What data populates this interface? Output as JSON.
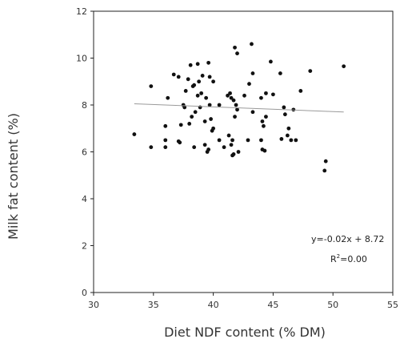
{
  "chart_data": {
    "type": "scatter",
    "title": "",
    "xlabel": "Diet NDF content (% DM)",
    "ylabel": "Milk fat content (%)",
    "xlim": [
      30,
      55
    ],
    "ylim": [
      0,
      12
    ],
    "xticks": [
      "30",
      "35",
      "40",
      "45",
      "50",
      "55"
    ],
    "yticks": [
      "0",
      "2",
      "4",
      "6",
      "8",
      "10",
      "12"
    ],
    "grid": false,
    "series": [
      {
        "points": [
          [
            33.4,
            6.75
          ],
          [
            34.8,
            6.2
          ],
          [
            34.8,
            8.8
          ],
          [
            36.0,
            7.1
          ],
          [
            36.0,
            6.5
          ],
          [
            36.0,
            6.2
          ],
          [
            36.2,
            8.3
          ],
          [
            36.7,
            9.3
          ],
          [
            37.1,
            9.2
          ],
          [
            37.1,
            6.45
          ],
          [
            37.2,
            6.4
          ],
          [
            37.3,
            7.15
          ],
          [
            37.5,
            8.0
          ],
          [
            37.6,
            7.9
          ],
          [
            37.7,
            8.6
          ],
          [
            37.9,
            9.1
          ],
          [
            38.0,
            7.2
          ],
          [
            38.1,
            9.7
          ],
          [
            38.2,
            7.5
          ],
          [
            38.3,
            8.8
          ],
          [
            38.4,
            8.85
          ],
          [
            38.4,
            6.2
          ],
          [
            38.5,
            7.7
          ],
          [
            38.7,
            8.4
          ],
          [
            38.7,
            9.75
          ],
          [
            38.8,
            9.0
          ],
          [
            38.9,
            7.9
          ],
          [
            39.0,
            8.5
          ],
          [
            39.1,
            9.25
          ],
          [
            39.3,
            6.3
          ],
          [
            39.3,
            7.3
          ],
          [
            39.4,
            8.3
          ],
          [
            39.5,
            6.0
          ],
          [
            39.6,
            6.1
          ],
          [
            39.6,
            9.8
          ],
          [
            39.7,
            9.2
          ],
          [
            39.7,
            8.0
          ],
          [
            39.8,
            7.4
          ],
          [
            39.9,
            6.9
          ],
          [
            40.0,
            9.0
          ],
          [
            40.0,
            7.0
          ],
          [
            40.5,
            8.0
          ],
          [
            40.5,
            6.5
          ],
          [
            40.9,
            6.2
          ],
          [
            41.2,
            8.4
          ],
          [
            41.3,
            6.7
          ],
          [
            41.4,
            8.5
          ],
          [
            41.5,
            8.3
          ],
          [
            41.5,
            6.3
          ],
          [
            41.6,
            6.5
          ],
          [
            41.6,
            5.85
          ],
          [
            41.7,
            8.2
          ],
          [
            41.7,
            5.9
          ],
          [
            41.8,
            7.5
          ],
          [
            41.8,
            10.45
          ],
          [
            41.9,
            8.0
          ],
          [
            42.0,
            10.2
          ],
          [
            42.0,
            7.8
          ],
          [
            42.1,
            6.0
          ],
          [
            42.6,
            8.4
          ],
          [
            42.9,
            6.5
          ],
          [
            43.0,
            8.9
          ],
          [
            43.2,
            10.6
          ],
          [
            43.3,
            9.35
          ],
          [
            43.3,
            7.7
          ],
          [
            44.0,
            6.5
          ],
          [
            44.0,
            8.3
          ],
          [
            44.1,
            7.3
          ],
          [
            44.1,
            6.1
          ],
          [
            44.2,
            7.1
          ],
          [
            44.3,
            6.05
          ],
          [
            44.4,
            8.5
          ],
          [
            44.4,
            7.5
          ],
          [
            44.8,
            9.85
          ],
          [
            45.0,
            8.45
          ],
          [
            45.6,
            9.35
          ],
          [
            45.7,
            6.55
          ],
          [
            45.9,
            7.9
          ],
          [
            46.0,
            7.6
          ],
          [
            46.2,
            6.7
          ],
          [
            46.3,
            7.0
          ],
          [
            46.5,
            6.5
          ],
          [
            46.7,
            7.8
          ],
          [
            46.9,
            6.5
          ],
          [
            47.3,
            8.6
          ],
          [
            48.1,
            9.45
          ],
          [
            49.3,
            5.2
          ],
          [
            49.4,
            5.6
          ],
          [
            50.9,
            9.65
          ]
        ]
      }
    ],
    "trendline": {
      "slope": -0.02,
      "intercept": 8.72,
      "x_start": 33.4,
      "x_end": 50.9
    },
    "annotations": [
      "y=-0.02x + 8.72",
      "R",
      "2",
      "=0.00"
    ]
  }
}
